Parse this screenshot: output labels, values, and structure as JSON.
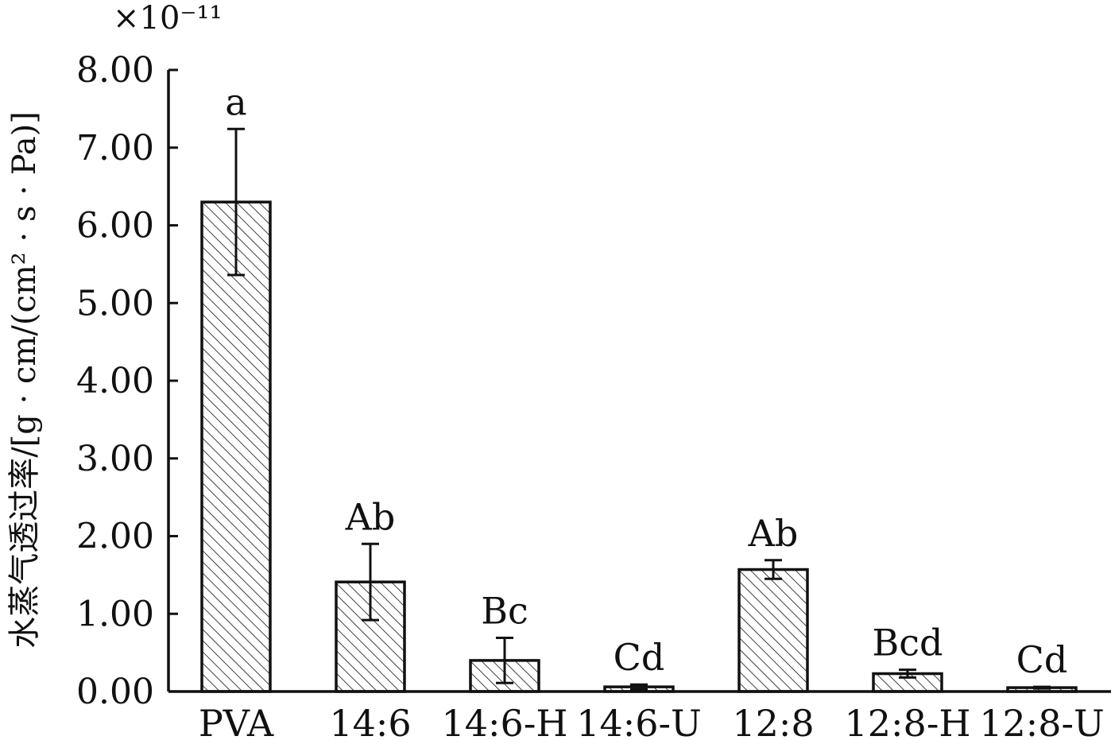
{
  "chart_data": {
    "type": "bar",
    "ylabel": "水蒸气透过率/[g · cm/(cm² · s · Pa)]",
    "y_multiplier": "×10⁻¹¹",
    "ylim": [
      0,
      8
    ],
    "yticks": [
      0,
      1,
      2,
      3,
      4,
      5,
      6,
      7,
      8
    ],
    "ytick_labels": [
      "0.00",
      "1.00",
      "2.00",
      "3.00",
      "4.00",
      "5.00",
      "6.00",
      "7.00",
      "8.00"
    ],
    "categories": [
      "PVA",
      "14:6",
      "14:6-H",
      "14:6-U",
      "12:8",
      "12:8-H",
      "12:8-U"
    ],
    "values": [
      6.3,
      1.41,
      0.4,
      0.06,
      1.57,
      0.23,
      0.05
    ],
    "errors": [
      0.94,
      0.49,
      0.29,
      0.03,
      0.12,
      0.05,
      0.01
    ],
    "significance_labels": [
      "a",
      "Ab",
      "Bc",
      "Cd",
      "Ab",
      "Bcd",
      "Cd"
    ],
    "pattern": "diagonal hatch",
    "grid": false,
    "colors": {
      "stroke": "#111111",
      "background": "#ffffff"
    }
  }
}
